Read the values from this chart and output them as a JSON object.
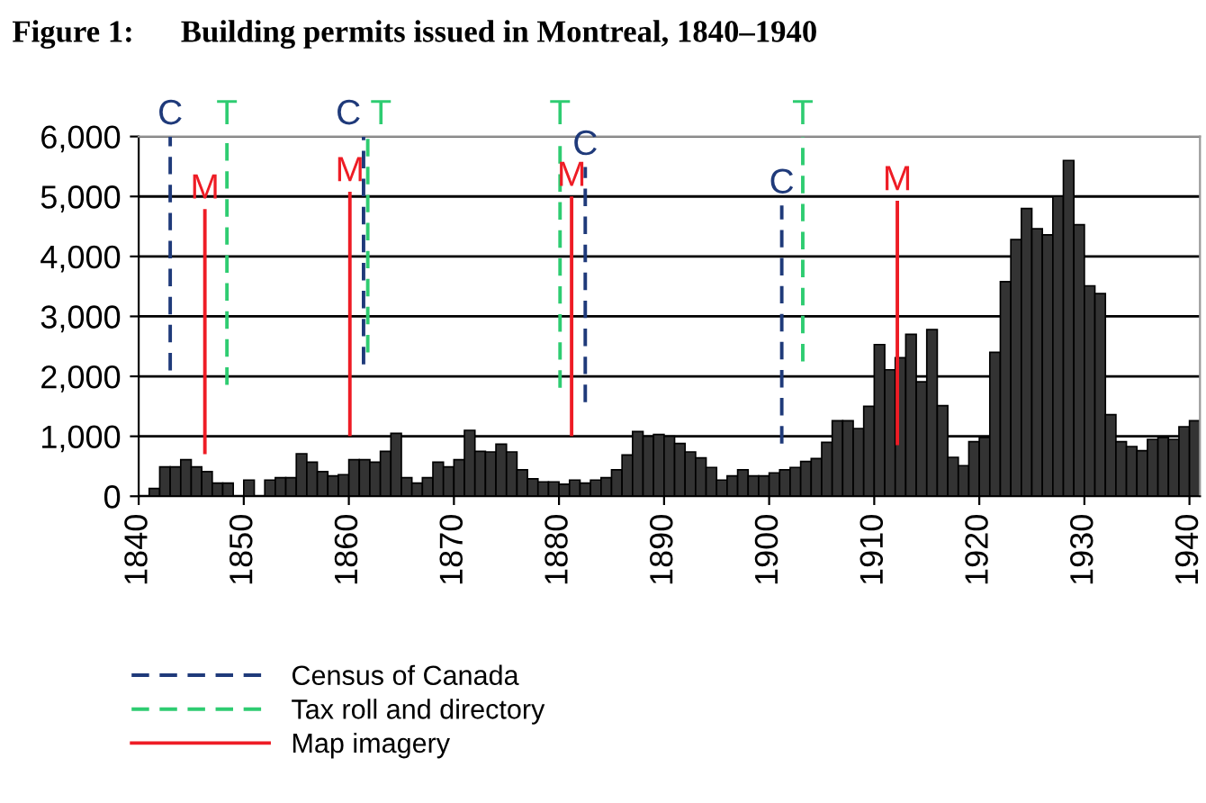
{
  "chart_data": {
    "type": "bar",
    "title": "Figure 1:      Building permits issued in Montreal, 1840–1940",
    "x": [
      1841,
      1842,
      1843,
      1844,
      1845,
      1846,
      1847,
      1848,
      1849,
      1850,
      1851,
      1852,
      1853,
      1854,
      1855,
      1856,
      1857,
      1858,
      1859,
      1860,
      1861,
      1862,
      1863,
      1864,
      1865,
      1866,
      1867,
      1868,
      1869,
      1870,
      1871,
      1872,
      1873,
      1874,
      1875,
      1876,
      1877,
      1878,
      1879,
      1880,
      1881,
      1882,
      1883,
      1884,
      1885,
      1886,
      1887,
      1888,
      1889,
      1890,
      1891,
      1892,
      1893,
      1894,
      1895,
      1896,
      1897,
      1898,
      1899,
      1900,
      1901,
      1902,
      1903,
      1904,
      1905,
      1906,
      1907,
      1908,
      1909,
      1910,
      1911,
      1912,
      1913,
      1914,
      1915,
      1916,
      1917,
      1918,
      1919,
      1920,
      1921,
      1922,
      1923,
      1924,
      1925,
      1926,
      1927,
      1928,
      1929,
      1930,
      1931,
      1932,
      1933,
      1934,
      1935,
      1936,
      1937,
      1938,
      1939,
      1940
    ],
    "series": [
      {
        "color": "#333333",
        "values": [
          130,
          490,
          490,
          610,
          490,
          410,
          220,
          220,
          null,
          270,
          null,
          270,
          310,
          310,
          710,
          570,
          410,
          340,
          360,
          610,
          610,
          570,
          750,
          1050,
          310,
          220,
          310,
          570,
          490,
          610,
          1100,
          750,
          740,
          870,
          740,
          440,
          290,
          240,
          240,
          200,
          270,
          220,
          270,
          310,
          440,
          690,
          1080,
          1000,
          1030,
          1000,
          880,
          740,
          640,
          480,
          270,
          340,
          440,
          340,
          340,
          390,
          440,
          480,
          580,
          630,
          900,
          1260,
          1260,
          1130,
          1500,
          2530,
          2110,
          2310,
          2700,
          1910,
          2780,
          1510,
          650,
          510,
          910,
          980,
          2400,
          3580,
          4280,
          4800,
          4460,
          4360,
          5000,
          5600,
          4530,
          3510,
          3380,
          1360,
          910,
          830,
          760,
          950,
          980,
          950,
          1160,
          1260
        ]
      },
      {
        "type": "line",
        "name": "Census of Canada",
        "color": "#1f3a7a",
        "line_style": "dashed",
        "x": [
          1843,
          1843,
          null,
          1861.4,
          1861.4,
          null,
          1882.5,
          1882.5,
          null,
          1901.2,
          1901.2
        ],
        "values": [
          2100,
          6000,
          null,
          2200,
          6000,
          null,
          1570,
          5490,
          null,
          880,
          4850
        ]
      },
      {
        "type": "line",
        "name": "Tax roll and directory",
        "color": "#2ecc71",
        "line_style": "dashed",
        "x": [
          1848.4,
          1848.4,
          null,
          1861.8,
          1861.8,
          null,
          1880.1,
          1880.1,
          null,
          1903.2,
          1903.2
        ],
        "values": [
          1860,
          6000,
          null,
          2400,
          6000,
          null,
          1810,
          6000,
          null,
          2250,
          6000
        ]
      },
      {
        "type": "line",
        "name": "Map imagery",
        "color": "#ee1c25",
        "line_style": "solid",
        "x": [
          1846.3,
          1846.3,
          null,
          1860.1,
          1860.1,
          null,
          1881.2,
          1881.2,
          null,
          1912.2,
          1912.2
        ],
        "values": [
          730,
          4760,
          null,
          1030,
          5050,
          null,
          1030,
          4970,
          null,
          880,
          4900
        ]
      }
    ],
    "annotations": [
      {
        "text": "C",
        "x": 1843,
        "y": 6000
      },
      {
        "text": "C",
        "x": 1861.4,
        "y": 6000
      },
      {
        "text": "C",
        "x": 1882.5,
        "y": 5490
      },
      {
        "text": "C",
        "x": 1901.2,
        "y": 4850
      },
      {
        "text": "T",
        "x": 1848.4,
        "y": 6000
      },
      {
        "text": "T",
        "x": 1861.8,
        "y": 6000
      },
      {
        "text": "T",
        "x": 1880.1,
        "y": 6000
      },
      {
        "text": "T",
        "x": 1903.2,
        "y": 6000
      },
      {
        "text": "M",
        "x": 1846.3,
        "y": 4760
      },
      {
        "text": "M",
        "x": 1860.1,
        "y": 5050
      },
      {
        "text": "M",
        "x": 1881.2,
        "y": 4970
      },
      {
        "text": "M",
        "x": 1912.2,
        "y": 4900
      }
    ],
    "xlim": [
      1840,
      1941
    ],
    "xticks": [
      1840,
      1850,
      1860,
      1870,
      1880,
      1890,
      1900,
      1910,
      1920,
      1930,
      1940
    ],
    "ylim": [
      0,
      6000
    ],
    "yticks": [
      0,
      {
        "value": 1000,
        "label": "1,000"
      },
      {
        "value": 2000,
        "label": "2,000"
      },
      {
        "value": 3000,
        "label": "3,000"
      },
      {
        "value": 4000,
        "label": "4,000"
      },
      {
        "value": 5000,
        "label": "5,000"
      },
      {
        "value": 6000,
        "label": "6,000"
      }
    ],
    "grid": "y",
    "legend": "bottom"
  }
}
